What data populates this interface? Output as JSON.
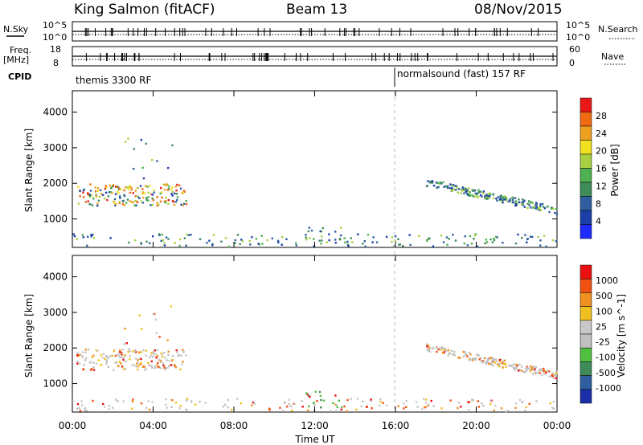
{
  "header": {
    "station": "King Salmon (fitACF)",
    "beam": "Beam 13",
    "date": "08/Nov/2015"
  },
  "strip": {
    "nsky_label": "N.Sky",
    "nsky_ticks": [
      "10^5",
      "10^0"
    ],
    "nsearch_label": "N.Search",
    "nsearch_ticks": [
      "10^5",
      "10^0"
    ],
    "freq_label_1": "Freq.",
    "freq_label_2": "[MHz]",
    "freq_ticks": [
      "18",
      "8"
    ],
    "nave_label": "Nave",
    "nave_ticks": [
      "60",
      "0"
    ],
    "cpid_label": "CPID",
    "cpid_1": "themis 3300 RF",
    "cpid_2": "normalsound (fast) 157 RF"
  },
  "colors": {
    "power_scale": [
      "#1f2bff",
      "#1a3fa8",
      "#2f5fa0",
      "#3f8b5a",
      "#4fb04f",
      "#a8d040",
      "#f0e020",
      "#f0a020",
      "#f06a10",
      "#e81818"
    ],
    "velocity_scale": [
      "#1a2ea8",
      "#2f5fa0",
      "#3f8b5a",
      "#50c040",
      "#c0c0c0",
      "#c8c8c8",
      "#f0c020",
      "#f09020",
      "#f05010",
      "#e81010"
    ]
  },
  "chart_data": [
    {
      "type": "heatmap",
      "panel": "power",
      "ylabel": "Slant Range [km]",
      "yticks": [
        1000,
        2000,
        3000,
        4000
      ],
      "ylim": [
        200,
        4600
      ],
      "xlim_hours": [
        0,
        24
      ],
      "colorbar_label": "Power [dB]",
      "colorbar_ticks": [
        "28",
        "24",
        "20",
        "16",
        "12",
        "8",
        "4"
      ],
      "regions": [
        {
          "t0": 0.2,
          "t1": 5.6,
          "r0": 1400,
          "r1": 2000,
          "note": "dense echoes"
        },
        {
          "t0": 2.5,
          "t1": 5.0,
          "r0": 2100,
          "r1": 3300,
          "note": "sparse echoes"
        },
        {
          "t0": 17.5,
          "t1": 24.0,
          "r0": 1150,
          "r1": 2150,
          "note": "descending band"
        },
        {
          "t0": 0.0,
          "t1": 24.0,
          "r0": 250,
          "r1": 600,
          "note": "ground scatter near range"
        },
        {
          "t0": 11.5,
          "t1": 13.5,
          "r0": 350,
          "r1": 800,
          "note": "patch"
        }
      ]
    },
    {
      "type": "heatmap",
      "panel": "velocity",
      "ylabel": "Slant Range [km]",
      "yticks": [
        1000,
        2000,
        3000,
        4000
      ],
      "ylim": [
        200,
        4600
      ],
      "xlim_hours": [
        0,
        24
      ],
      "colorbar_label": "Velocity [m s^-1]",
      "colorbar_ticks": [
        "1000",
        "500",
        "100",
        "25",
        "-25",
        "-100",
        "-500",
        "-1000"
      ],
      "xlabel": "Time UT",
      "xticks": [
        "00:00",
        "04:00",
        "08:00",
        "12:00",
        "16:00",
        "20:00",
        "00:00"
      ],
      "regions": [
        {
          "t0": 0.2,
          "t1": 5.6,
          "r0": 1400,
          "r1": 2000,
          "note": "mostly grey/orange"
        },
        {
          "t0": 2.5,
          "t1": 5.0,
          "r0": 2100,
          "r1": 3300,
          "note": "sparse orange"
        },
        {
          "t0": 17.5,
          "t1": 24.0,
          "r0": 1150,
          "r1": 2150,
          "note": "grey band"
        },
        {
          "t0": 0.0,
          "t1": 24.0,
          "r0": 250,
          "r1": 600,
          "note": "near range"
        },
        {
          "t0": 11.5,
          "t1": 13.5,
          "r0": 350,
          "r1": 800,
          "note": "green patch"
        }
      ]
    }
  ]
}
